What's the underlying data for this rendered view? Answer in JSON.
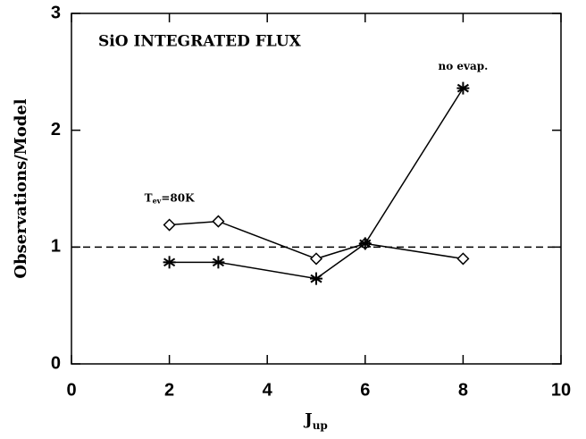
{
  "chart_data": {
    "type": "line",
    "title": "SiO INTEGRATED FLUX",
    "x_label": {
      "main": "J",
      "sub": "up"
    },
    "y_label": "Observations/Model",
    "x": [
      2,
      3,
      5,
      6,
      8
    ],
    "series": [
      {
        "marker": "diamond",
        "color": "#000000",
        "values": [
          1.19,
          1.22,
          0.9,
          1.03,
          0.9
        ]
      },
      {
        "marker": "asterisk",
        "color": "#000000",
        "values": [
          0.87,
          0.87,
          0.73,
          1.03,
          2.36
        ]
      }
    ],
    "annotations": [
      {
        "main": "T",
        "sub": "ev",
        "rest": "=80K",
        "x": 2,
        "y": 1.42
      },
      {
        "main": "no evap.",
        "x": 8,
        "y": 2.55
      }
    ],
    "reference_line": 1,
    "xlim": [
      0,
      10
    ],
    "xticks": [
      0,
      2,
      4,
      6,
      8,
      10
    ],
    "ylim": [
      0,
      3
    ],
    "yticks": [
      0,
      1,
      2,
      3
    ]
  }
}
